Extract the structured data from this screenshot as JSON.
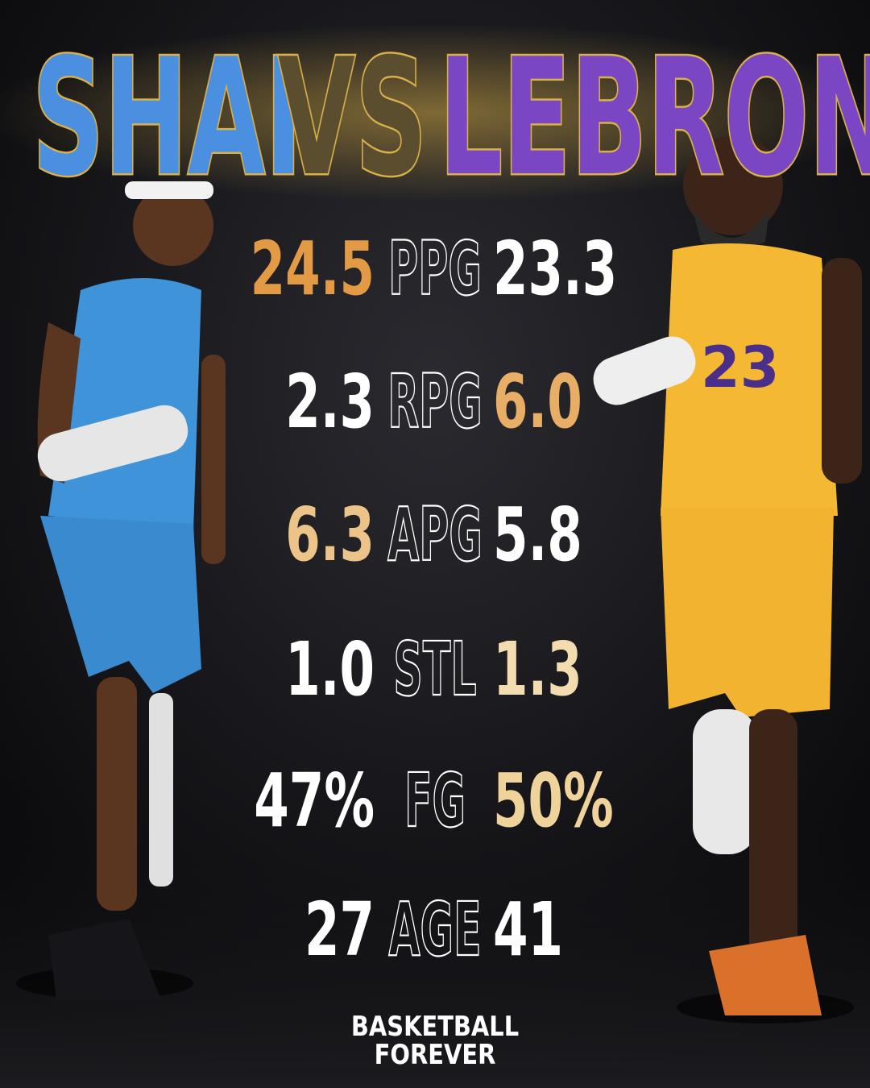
{
  "header": {
    "title_left": "SHAI",
    "title_mid": "VS",
    "title_right": "LEBRON",
    "title_left_color": "#4a8fe0",
    "title_mid_color": "#5a4e2e",
    "title_right_color": "#7a46c4"
  },
  "stats": [
    {
      "left": "24.5",
      "label": "PPG",
      "right": "23.3",
      "left_color": "#e39a45",
      "right_color": "#ffffff"
    },
    {
      "left": "2.3",
      "label": "RPG",
      "right": "6.0",
      "left_color": "#ffffff",
      "right_color": "#e8ae66"
    },
    {
      "left": "6.3",
      "label": "APG",
      "right": "5.8",
      "left_color": "#ecc48a",
      "right_color": "#ffffff"
    },
    {
      "left": "1.0",
      "label": "STL",
      "right": "1.3",
      "left_color": "#ffffff",
      "right_color": "#f3dcb0"
    },
    {
      "left": "47%",
      "label": "FG",
      "right": "50%",
      "left_color": "#ffffff",
      "right_color": "#f0d39a"
    },
    {
      "left": "27",
      "label": "AGE",
      "right": "41",
      "left_color": "#ffffff",
      "right_color": "#ffffff"
    }
  ],
  "footer": {
    "line1": "BASKETBALL",
    "line2": "FOREVER"
  }
}
